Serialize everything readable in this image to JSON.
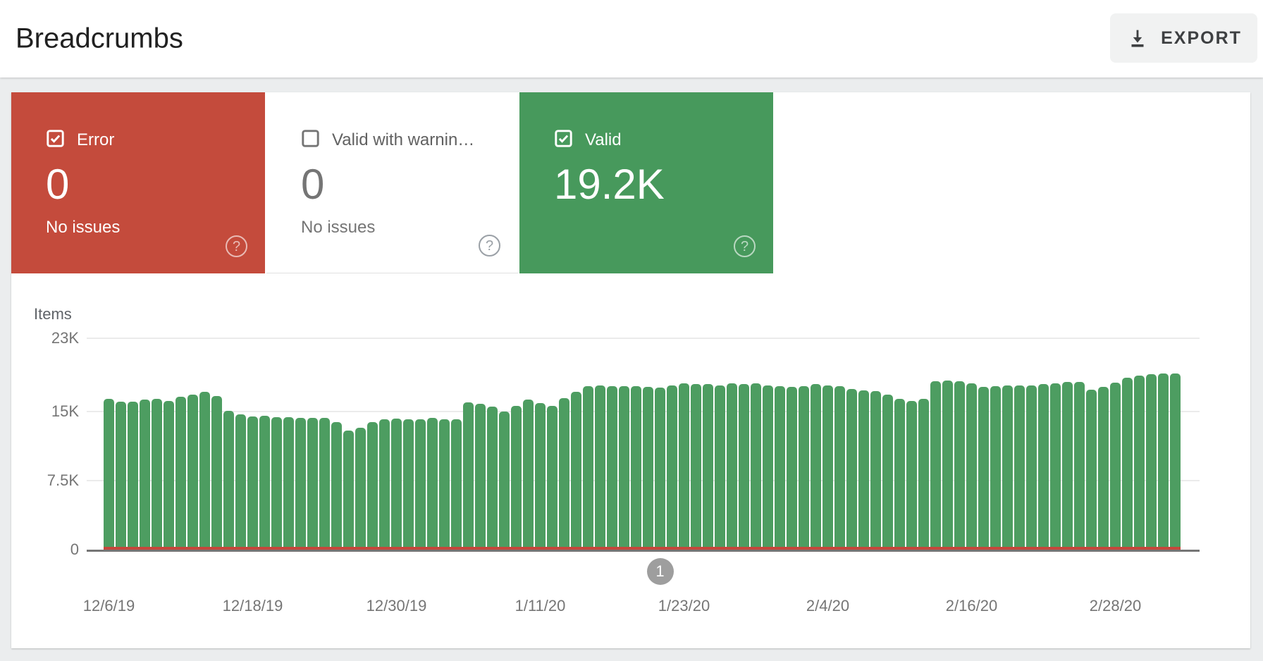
{
  "header": {
    "title": "Breadcrumbs",
    "export_label": "EXPORT"
  },
  "cards": [
    {
      "id": "error",
      "label": "Error",
      "value": "0",
      "sub": "No issues",
      "checked": true,
      "bg": "#c44b3c"
    },
    {
      "id": "warning",
      "label": "Valid with warnin…",
      "value": "0",
      "sub": "No issues",
      "checked": false,
      "bg": "#ffffff"
    },
    {
      "id": "valid",
      "label": "Valid",
      "value": "19.2K",
      "sub": "",
      "checked": true,
      "bg": "#47995c"
    }
  ],
  "chart_data": {
    "type": "bar",
    "title": "Items",
    "ylabel": "Items",
    "ylim": [
      0,
      23000
    ],
    "grid": true,
    "y_ticks": [
      {
        "label": "23K",
        "value": 23000
      },
      {
        "label": "15K",
        "value": 15000
      },
      {
        "label": "7.5K",
        "value": 7500
      },
      {
        "label": "0",
        "value": 0
      }
    ],
    "x_labels": [
      "12/6/19",
      "12/18/19",
      "12/30/19",
      "1/11/20",
      "1/23/20",
      "2/4/20",
      "2/16/20",
      "2/28/20"
    ],
    "x_label_day_indices": [
      0,
      12,
      24,
      36,
      48,
      60,
      72,
      84
    ],
    "start_label": "12/6/19",
    "days": 90,
    "series": [
      {
        "name": "Valid",
        "color": "#4d9d61",
        "values": [
          16400,
          16100,
          16100,
          16300,
          16400,
          16200,
          16600,
          16900,
          17200,
          16700,
          15100,
          14700,
          14500,
          14550,
          14450,
          14400,
          14350,
          14300,
          14350,
          13900,
          12950,
          13300,
          13900,
          14200,
          14250,
          14200,
          14200,
          14300,
          14200,
          14150,
          16000,
          15900,
          15600,
          15000,
          15650,
          16350,
          15950,
          15650,
          16500,
          17200,
          17750,
          17900,
          17750,
          17750,
          17800,
          17700,
          17650,
          17900,
          18100,
          18000,
          18000,
          17900,
          18100,
          18000,
          18100,
          17900,
          17800,
          17700,
          17800,
          18000,
          17900,
          17800,
          17500,
          17300,
          17250,
          16900,
          16400,
          16200,
          16400,
          18300,
          18400,
          18350,
          18100,
          17700,
          17800,
          17900,
          17900,
          17900,
          18050,
          18100,
          18250,
          18250,
          17400,
          17700,
          18200,
          18700,
          18900,
          19100,
          19150,
          19200
        ]
      },
      {
        "name": "Error",
        "color": "#c5473b",
        "constant_value": 0
      }
    ],
    "annotation": {
      "label": "1",
      "day_index": 46
    },
    "legend_position": "none"
  },
  "colors": {
    "error_red": "#c44b3c",
    "valid_green": "#47995c",
    "bar_green": "#4d9d61",
    "zero_line_red": "#c5473b",
    "axis_text": "#757575",
    "marker_gray": "#9e9e9e",
    "page_bg": "#ebedee"
  }
}
